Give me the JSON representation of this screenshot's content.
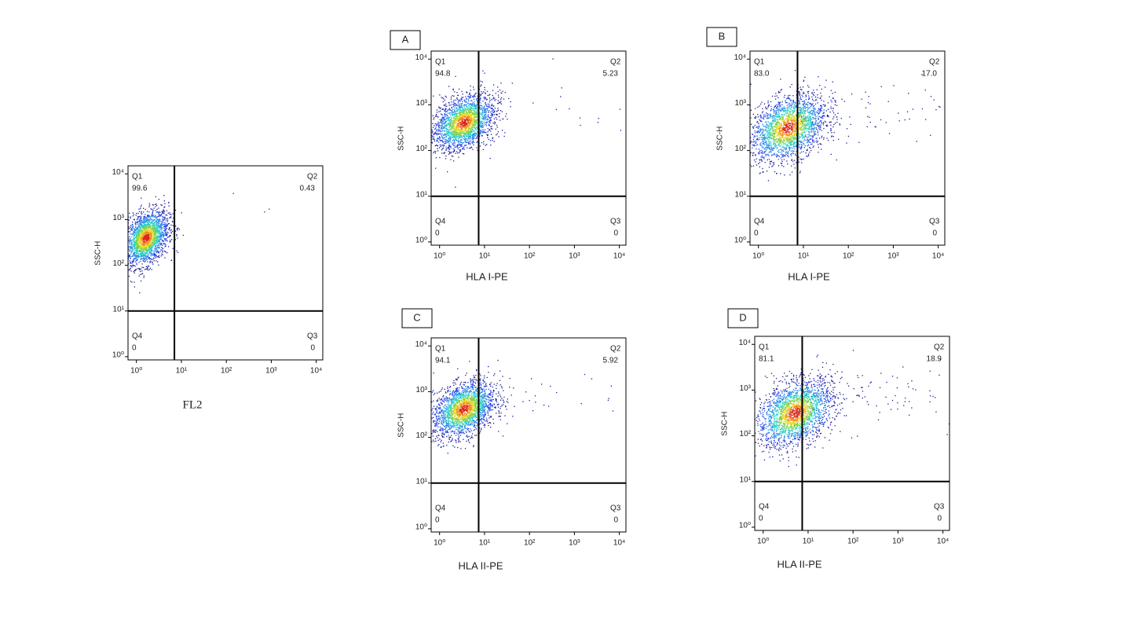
{
  "chart_data": [
    {
      "type": "density",
      "xlabel": "FL2",
      "ylabel": "SSC-H",
      "xscale": "log",
      "yscale": "log",
      "xlim": [
        0.65,
        14000
      ],
      "ylim": [
        0.85,
        15000
      ],
      "xticks": [
        {
          "value": 1,
          "label": "10⁰"
        },
        {
          "value": 10,
          "label": "10¹"
        },
        {
          "value": 100,
          "label": "10²"
        },
        {
          "value": 1000,
          "label": "10³"
        },
        {
          "value": 10000,
          "label": "10⁴"
        }
      ],
      "yticks": [
        {
          "value": 1,
          "label": "10⁰"
        },
        {
          "value": 10,
          "label": "10¹"
        },
        {
          "value": 100,
          "label": "10²"
        },
        {
          "value": 1000,
          "label": "10³"
        },
        {
          "value": 10000,
          "label": "10⁴"
        }
      ],
      "quadrants": [
        "Q1",
        "Q2",
        "Q3",
        "Q4"
      ],
      "values": [
        99.6,
        0.43,
        0,
        0
      ],
      "x_gate": 7,
      "y_gate": 10,
      "density_center": [
        1.6,
        400
      ],
      "density_spread": [
        0.25,
        0.3
      ]
    },
    {
      "type": "density",
      "panel": "A",
      "xlabel": "HLA I-PE",
      "ylabel": "SSC-H",
      "xscale": "log",
      "yscale": "log",
      "xlim": [
        0.65,
        14000
      ],
      "ylim": [
        0.85,
        15000
      ],
      "xticks": [
        {
          "value": 1,
          "label": "10⁰"
        },
        {
          "value": 10,
          "label": "10¹"
        },
        {
          "value": 100,
          "label": "10²"
        },
        {
          "value": 1000,
          "label": "10³"
        },
        {
          "value": 10000,
          "label": "10⁴"
        }
      ],
      "yticks": [
        {
          "value": 1,
          "label": "10⁰"
        },
        {
          "value": 10,
          "label": "10¹"
        },
        {
          "value": 100,
          "label": "10²"
        },
        {
          "value": 1000,
          "label": "10³"
        },
        {
          "value": 10000,
          "label": "10⁴"
        }
      ],
      "quadrants": [
        "Q1",
        "Q2",
        "Q3",
        "Q4"
      ],
      "values": [
        94.8,
        5.23,
        0,
        0
      ],
      "x_gate": 7.4,
      "y_gate": 10,
      "density_center": [
        3.4,
        420
      ],
      "density_spread": [
        0.33,
        0.3
      ]
    },
    {
      "type": "density",
      "panel": "B",
      "xlabel": "HLA I-PE",
      "ylabel": "SSC-H",
      "xscale": "log",
      "yscale": "log",
      "xlim": [
        0.65,
        14000
      ],
      "ylim": [
        0.85,
        15000
      ],
      "xticks": [
        {
          "value": 1,
          "label": "10⁰"
        },
        {
          "value": 10,
          "label": "10¹"
        },
        {
          "value": 100,
          "label": "10²"
        },
        {
          "value": 1000,
          "label": "10³"
        },
        {
          "value": 10000,
          "label": "10⁴"
        }
      ],
      "yticks": [
        {
          "value": 1,
          "label": "10⁰"
        },
        {
          "value": 10,
          "label": "10¹"
        },
        {
          "value": 100,
          "label": "10²"
        },
        {
          "value": 1000,
          "label": "10³"
        },
        {
          "value": 10000,
          "label": "10⁴"
        }
      ],
      "quadrants": [
        "Q1",
        "Q2",
        "Q3",
        "Q4"
      ],
      "values": [
        83,
        17,
        0,
        0
      ],
      "value_labels": [
        "83.0",
        "17.0",
        "0",
        "0"
      ],
      "x_gate": 7.4,
      "y_gate": 10,
      "density_center": [
        4.5,
        320
      ],
      "density_spread": [
        0.42,
        0.36
      ]
    },
    {
      "type": "density",
      "panel": "C",
      "xlabel": "HLA II-PE",
      "ylabel": "SSC-H",
      "xscale": "log",
      "yscale": "log",
      "xlim": [
        0.65,
        14000
      ],
      "ylim": [
        0.85,
        15000
      ],
      "xticks": [
        {
          "value": 1,
          "label": "10⁰"
        },
        {
          "value": 10,
          "label": "10¹"
        },
        {
          "value": 100,
          "label": "10²"
        },
        {
          "value": 1000,
          "label": "10³"
        },
        {
          "value": 10000,
          "label": "10⁴"
        }
      ],
      "yticks": [
        {
          "value": 1,
          "label": "10⁰"
        },
        {
          "value": 10,
          "label": "10¹"
        },
        {
          "value": 100,
          "label": "10²"
        },
        {
          "value": 1000,
          "label": "10³"
        },
        {
          "value": 10000,
          "label": "10⁴"
        }
      ],
      "quadrants": [
        "Q1",
        "Q2",
        "Q3",
        "Q4"
      ],
      "values": [
        94.1,
        5.92,
        0,
        0
      ],
      "x_gate": 7.4,
      "y_gate": 10,
      "density_center": [
        3.4,
        420
      ],
      "density_spread": [
        0.34,
        0.3
      ]
    },
    {
      "type": "density",
      "panel": "D",
      "xlabel": "HLA II-PE",
      "ylabel": "SSC-H",
      "xscale": "log",
      "yscale": "log",
      "xlim": [
        0.65,
        14000
      ],
      "ylim": [
        0.85,
        15000
      ],
      "xticks": [
        {
          "value": 1,
          "label": "10⁰"
        },
        {
          "value": 10,
          "label": "10¹"
        },
        {
          "value": 100,
          "label": "10²"
        },
        {
          "value": 1000,
          "label": "10³"
        },
        {
          "value": 10000,
          "label": "10⁴"
        }
      ],
      "yticks": [
        {
          "value": 1,
          "label": "10⁰"
        },
        {
          "value": 10,
          "label": "10¹"
        },
        {
          "value": 100,
          "label": "10²"
        },
        {
          "value": 1000,
          "label": "10³"
        },
        {
          "value": 10000,
          "label": "10⁴"
        }
      ],
      "quadrants": [
        "Q1",
        "Q2",
        "Q3",
        "Q4"
      ],
      "values": [
        81.1,
        18.9,
        0,
        0
      ],
      "x_gate": 7.4,
      "y_gate": 10,
      "density_center": [
        5,
        320
      ],
      "density_spread": [
        0.42,
        0.36
      ]
    }
  ]
}
